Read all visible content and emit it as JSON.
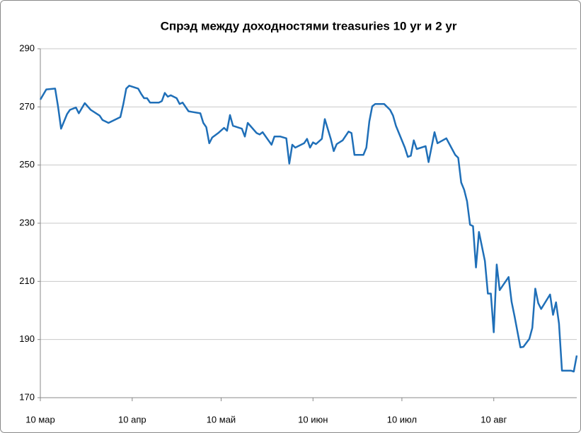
{
  "chart_data": {
    "type": "line",
    "title": "Спрэд между доходностями treasuries 10 yr и 2 yr",
    "x": [
      "03-10",
      "03-12",
      "03-15",
      "03-16",
      "03-17",
      "03-19",
      "03-20",
      "03-22",
      "03-23",
      "03-25",
      "03-27",
      "03-30",
      "03-31",
      "04-02",
      "04-06",
      "04-07",
      "04-08",
      "04-09",
      "04-12",
      "04-13",
      "04-14",
      "04-15",
      "04-16",
      "04-19",
      "04-20",
      "04-21",
      "04-22",
      "04-23",
      "04-25",
      "04-26",
      "04-27",
      "04-29",
      "04-30",
      "05-03",
      "05-04",
      "05-05",
      "05-06",
      "05-07",
      "05-09",
      "05-11",
      "05-12",
      "05-13",
      "05-14",
      "05-17",
      "05-18",
      "05-19",
      "05-22",
      "05-23",
      "05-24",
      "05-27",
      "05-28",
      "05-30",
      "06-01",
      "06-02",
      "06-03",
      "06-04",
      "06-07",
      "06-08",
      "06-09",
      "06-10",
      "06-11",
      "06-13",
      "06-14",
      "06-16",
      "06-17",
      "06-18",
      "06-20",
      "06-22",
      "06-23",
      "06-24",
      "06-27",
      "06-28",
      "06-29",
      "06-30",
      "07-01",
      "07-04",
      "07-06",
      "07-07",
      "07-08",
      "07-11",
      "07-12",
      "07-13",
      "07-14",
      "07-15",
      "07-18",
      "07-19",
      "07-21",
      "07-22",
      "07-25",
      "07-28",
      "07-29",
      "07-30",
      "07-31",
      "08-01",
      "08-02",
      "08-03",
      "08-04",
      "08-05",
      "08-07",
      "08-08",
      "08-09",
      "08-10",
      "08-11",
      "08-12",
      "08-15",
      "08-16",
      "08-17",
      "08-19",
      "08-20",
      "08-22",
      "08-23",
      "08-24",
      "08-25",
      "08-26",
      "08-29",
      "08-30",
      "08-31",
      "09-01",
      "09-02",
      "09-05",
      "09-06",
      "09-07"
    ],
    "series": [
      {
        "color": "#1f6fb8",
        "values": [
          272.5,
          276,
          276.3,
          270,
          262.5,
          267.5,
          269,
          269.8,
          267.8,
          271.3,
          269,
          267,
          265.5,
          264.5,
          266.5,
          271,
          276.3,
          277.3,
          276.3,
          274.5,
          273,
          273,
          271.5,
          271.5,
          272,
          274.8,
          273.5,
          274,
          273,
          271,
          271.5,
          268.5,
          268.3,
          267.8,
          264.5,
          263,
          257.5,
          259.5,
          261,
          262.8,
          261.8,
          267.2,
          263.5,
          262.5,
          259.8,
          264.5,
          261,
          260.5,
          261.3,
          257,
          259.8,
          259.8,
          259.2,
          250.5,
          257,
          256,
          257.5,
          259,
          256,
          257.8,
          257.2,
          259,
          265.8,
          259,
          254.8,
          257.2,
          258.5,
          261.5,
          261,
          253.5,
          253.5,
          256,
          265,
          270.2,
          271,
          271,
          269,
          267,
          263.5,
          256,
          252.8,
          253.2,
          258.5,
          255.5,
          256.5,
          251,
          261.3,
          257.5,
          259.2,
          253.5,
          252.5,
          244,
          241.5,
          237.5,
          229.5,
          229,
          214.8,
          227,
          217,
          205.8,
          205.8,
          192.5,
          215.8,
          207,
          211.5,
          203,
          198,
          187.3,
          187.5,
          190.2,
          194,
          207.5,
          202.5,
          200.5,
          205.5,
          198.5,
          202.8,
          195.5,
          179.3,
          179.3,
          179,
          184.5
        ]
      }
    ],
    "xlim": [
      "03-10",
      "09-07"
    ],
    "xticks": [
      {
        "value": "03-10",
        "label": "10 мар"
      },
      {
        "value": "04-10",
        "label": "10 апр"
      },
      {
        "value": "05-10",
        "label": "10 май"
      },
      {
        "value": "06-10",
        "label": "10 июн"
      },
      {
        "value": "07-10",
        "label": "10 июл"
      },
      {
        "value": "08-10",
        "label": "10 авг"
      }
    ],
    "ylim": [
      170,
      290
    ],
    "yticks": [
      170,
      190,
      210,
      230,
      250,
      270,
      290
    ],
    "grid": true
  }
}
